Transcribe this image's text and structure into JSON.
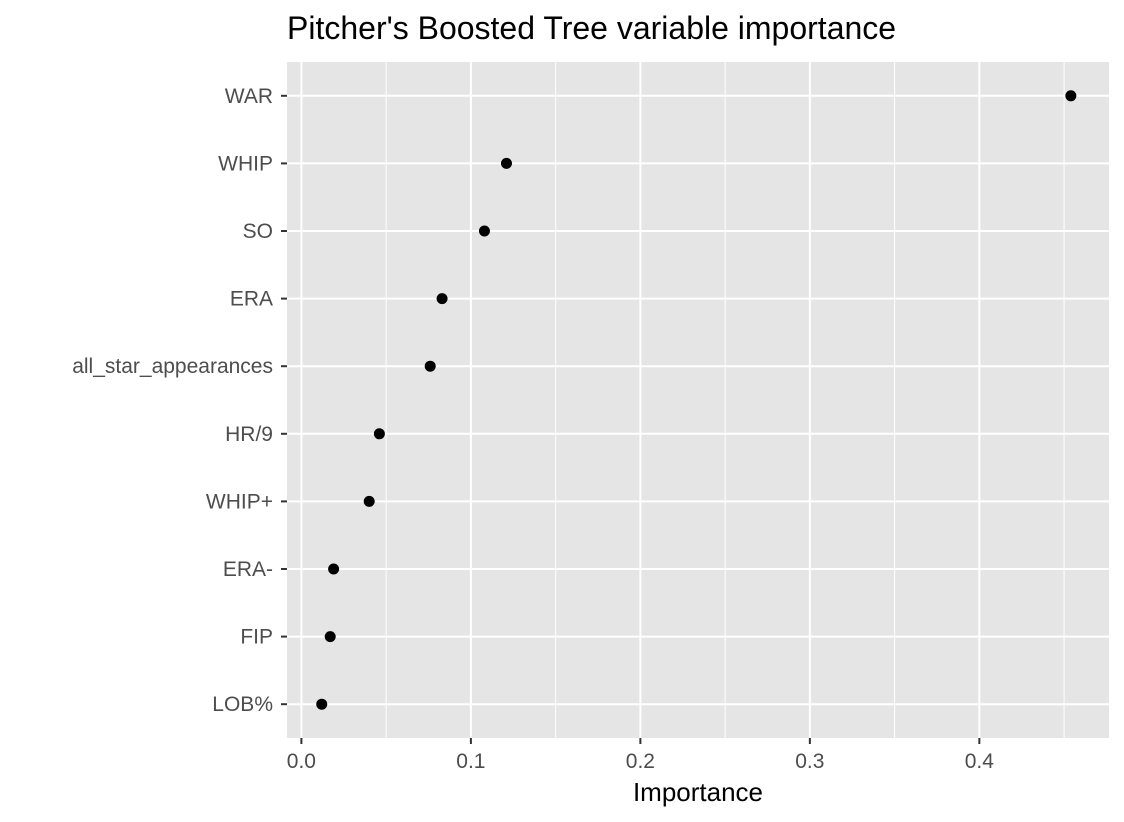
{
  "colors": {
    "panel_background": "#e5e5e5",
    "grid": "#ffffff",
    "point": "#000000",
    "tick_text": "#4d4d4d",
    "tick_mark": "#333333"
  },
  "chart_data": {
    "type": "scatter",
    "title": "Pitcher's Boosted Tree variable importance",
    "xlabel": "Importance",
    "ylabel": "",
    "xlim": [
      -0.0085,
      0.4765
    ],
    "xticks": [
      0.0,
      0.1,
      0.2,
      0.3,
      0.4
    ],
    "xtick_labels": [
      "0.0",
      "0.1",
      "0.2",
      "0.3",
      "0.4"
    ],
    "grid": true,
    "legend": "none",
    "categories": [
      "WAR",
      "WHIP",
      "SO",
      "ERA",
      "all_star_appearances",
      "HR/9",
      "WHIP+",
      "ERA-",
      "FIP",
      "LOB%"
    ],
    "values": [
      0.454,
      0.121,
      0.108,
      0.083,
      0.076,
      0.046,
      0.04,
      0.019,
      0.017,
      0.012
    ]
  }
}
